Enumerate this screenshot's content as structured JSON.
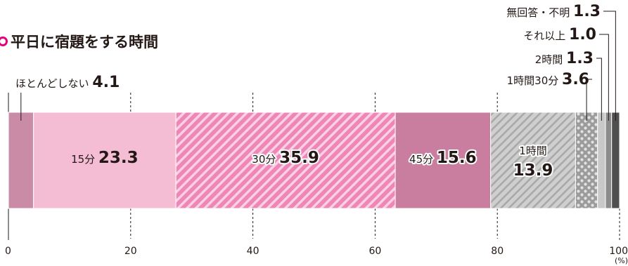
{
  "title": "平日に宿題をする時間",
  "chart_data": {
    "type": "bar",
    "orientation": "horizontal-stacked",
    "title": "平日に宿題をする時間",
    "unit": "(%)",
    "xlim": [
      0,
      100
    ],
    "ticks": [
      "0",
      "20",
      "40",
      "60",
      "80",
      "100"
    ],
    "grid": true,
    "categories": [
      "ほとんどしない",
      "15分",
      "30分",
      "45分",
      "1時間",
      "1時間30分",
      "2時間",
      "それ以上",
      "無回答・不明"
    ],
    "values": [
      4.1,
      23.3,
      35.9,
      15.6,
      13.9,
      3.6,
      1.3,
      1.0,
      1.3
    ],
    "value_labels": [
      "4.1",
      "23.3",
      "35.9",
      "15.6",
      "13.9",
      "3.6",
      "1.3",
      "1.0",
      "1.3"
    ],
    "colors": [
      "#c98ba6",
      "#f5bdd4",
      "#ee86b8",
      "#c97d9f",
      "#c8c8c8",
      "#9b9b9b",
      "#c9c9c9",
      "#8c8c8c",
      "#4f4f4f"
    ]
  }
}
